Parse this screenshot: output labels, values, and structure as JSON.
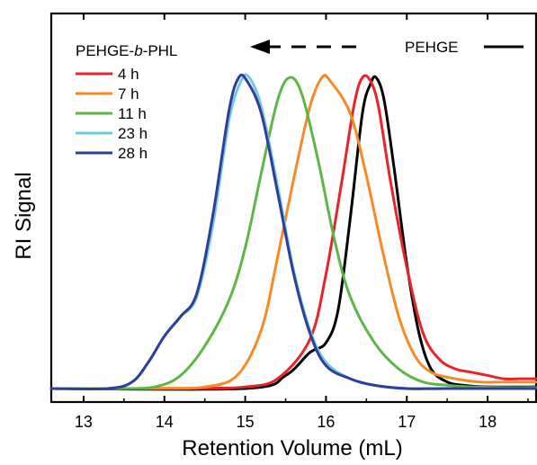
{
  "chart_data": {
    "type": "line",
    "title": "",
    "xlabel": "Retention Volume (mL)",
    "ylabel": "RI Signal",
    "xlim": [
      12.6,
      18.6
    ],
    "ylim": [
      0,
      1.0
    ],
    "xticks": [
      13,
      14,
      15,
      16,
      17,
      18
    ],
    "grid": false,
    "legend": {
      "title": "PEHGE-",
      "title_italic": "b",
      "title_suffix": "-PHL",
      "placement": "top-left"
    },
    "annotation": {
      "label": "PEHGE",
      "color": "#000000",
      "arrow": "dashed-left"
    },
    "series": [
      {
        "name": "4 h",
        "color": "#e8242b",
        "x": [
          12.6,
          13.5,
          14.0,
          14.5,
          15.0,
          15.4,
          15.8,
          16.0,
          16.2,
          16.35,
          16.45,
          16.55,
          16.65,
          16.8,
          17.0,
          17.2,
          17.4,
          17.6,
          17.8,
          18.0,
          18.2,
          18.4,
          18.6
        ],
        "y": [
          0.0,
          0.0,
          0.0,
          0.001,
          0.005,
          0.03,
          0.15,
          0.35,
          0.64,
          0.87,
          0.95,
          0.94,
          0.86,
          0.63,
          0.37,
          0.17,
          0.09,
          0.06,
          0.05,
          0.04,
          0.03,
          0.03,
          0.03
        ]
      },
      {
        "name": "7 h",
        "color": "#f58b26",
        "x": [
          12.6,
          13.5,
          14.0,
          14.5,
          14.9,
          15.2,
          15.4,
          15.6,
          15.8,
          15.95,
          16.05,
          16.3,
          16.5,
          16.7,
          16.9,
          17.1,
          17.3,
          17.6,
          17.9,
          18.2,
          18.6
        ],
        "y": [
          0.0,
          0.0,
          0.001,
          0.005,
          0.04,
          0.18,
          0.4,
          0.64,
          0.86,
          0.95,
          0.94,
          0.84,
          0.65,
          0.42,
          0.22,
          0.1,
          0.05,
          0.03,
          0.02,
          0.02,
          0.02
        ]
      },
      {
        "name": "11 h",
        "color": "#5db646",
        "x": [
          12.6,
          13.5,
          13.9,
          14.2,
          14.5,
          14.8,
          15.0,
          15.2,
          15.4,
          15.55,
          15.7,
          15.9,
          16.1,
          16.3,
          16.6,
          16.9,
          17.2,
          17.5,
          17.8,
          18.2,
          18.6
        ],
        "y": [
          0.0,
          0.0,
          0.006,
          0.04,
          0.13,
          0.27,
          0.43,
          0.66,
          0.88,
          0.95,
          0.9,
          0.7,
          0.46,
          0.28,
          0.14,
          0.06,
          0.02,
          0.01,
          0.005,
          0.003,
          0.003
        ]
      },
      {
        "name": "23 h",
        "color": "#6fcbe2",
        "x": [
          12.6,
          13.3,
          13.6,
          13.8,
          14.0,
          14.2,
          14.4,
          14.6,
          14.8,
          14.95,
          15.05,
          15.2,
          15.4,
          15.6,
          15.8,
          16.0,
          16.3,
          16.6,
          17.0,
          17.5,
          18.6
        ],
        "y": [
          0.0,
          0.0,
          0.02,
          0.08,
          0.16,
          0.22,
          0.28,
          0.5,
          0.82,
          0.94,
          0.95,
          0.86,
          0.62,
          0.36,
          0.18,
          0.08,
          0.03,
          0.01,
          0.0,
          0.0,
          0.0
        ]
      },
      {
        "name": "28 h",
        "color": "#2e3e9a",
        "x": [
          12.6,
          13.3,
          13.6,
          13.8,
          14.0,
          14.2,
          14.4,
          14.6,
          14.8,
          14.92,
          15.02,
          15.2,
          15.4,
          15.6,
          15.8,
          16.0,
          16.3,
          16.6,
          17.0,
          17.5,
          18.6
        ],
        "y": [
          0.0,
          0.0,
          0.02,
          0.08,
          0.16,
          0.22,
          0.29,
          0.53,
          0.85,
          0.95,
          0.94,
          0.84,
          0.6,
          0.35,
          0.17,
          0.07,
          0.03,
          0.01,
          0.0,
          0.0,
          0.0
        ]
      },
      {
        "name": "PEHGE",
        "color": "#000000",
        "x": [
          12.6,
          15.0,
          15.5,
          15.8,
          16.0,
          16.15,
          16.3,
          16.45,
          16.55,
          16.62,
          16.72,
          16.85,
          17.0,
          17.15,
          17.3,
          17.5,
          17.7,
          18.0,
          18.6
        ],
        "y": [
          0.0,
          0.0,
          0.04,
          0.11,
          0.14,
          0.24,
          0.52,
          0.84,
          0.93,
          0.95,
          0.88,
          0.66,
          0.38,
          0.17,
          0.06,
          0.02,
          0.01,
          0.005,
          0.005
        ]
      }
    ]
  }
}
